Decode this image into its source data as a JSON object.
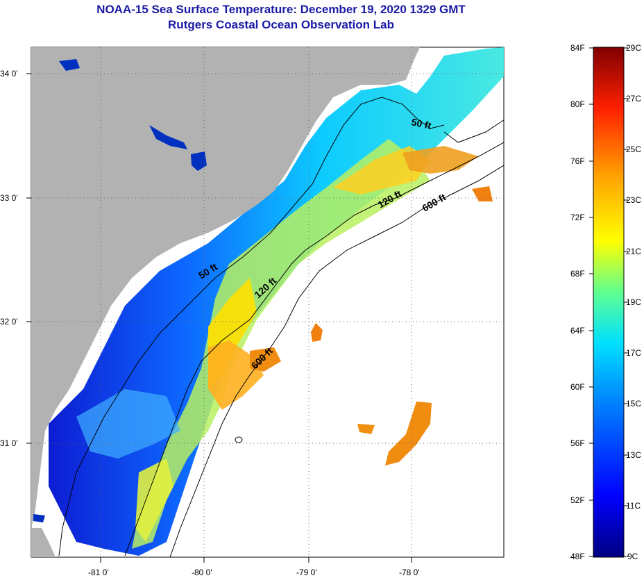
{
  "header": {
    "title": "NOAA-15 Sea Surface Temperature:  December 19, 2020 1329 GMT",
    "subtitle": "Rutgers Coastal Ocean Observation Lab"
  },
  "map": {
    "lat_labels": [
      "34 0'",
      "33 0'",
      "32 0'",
      "31 0'"
    ],
    "lon_labels": [
      "-81 0'",
      "-80 0'",
      "-79 0'",
      "-78 0'"
    ],
    "land_color": "#b2b2b2",
    "no_data_color": "#ffffff",
    "contours": {
      "c50_a": "50 ft",
      "c50_b": "50 ft",
      "c120_a": "120 ft",
      "c120_b": "120 ft",
      "c600_a": "600 ft",
      "c600_b": "600 ft"
    }
  },
  "colorbar": {
    "fahrenheit": [
      "84F",
      "80F",
      "76F",
      "72F",
      "68F",
      "64F",
      "60F",
      "56F",
      "52F",
      "48F"
    ],
    "celsius": [
      "29C",
      "27C",
      "25C",
      "23C",
      "21C",
      "19C",
      "17C",
      "15C",
      "13C",
      "11C",
      "9C"
    ],
    "colors": [
      "#000080",
      "#0000ff",
      "#0080ff",
      "#00ffff",
      "#80ff80",
      "#ffff00",
      "#ff8000",
      "#ff0000",
      "#800000"
    ]
  }
}
